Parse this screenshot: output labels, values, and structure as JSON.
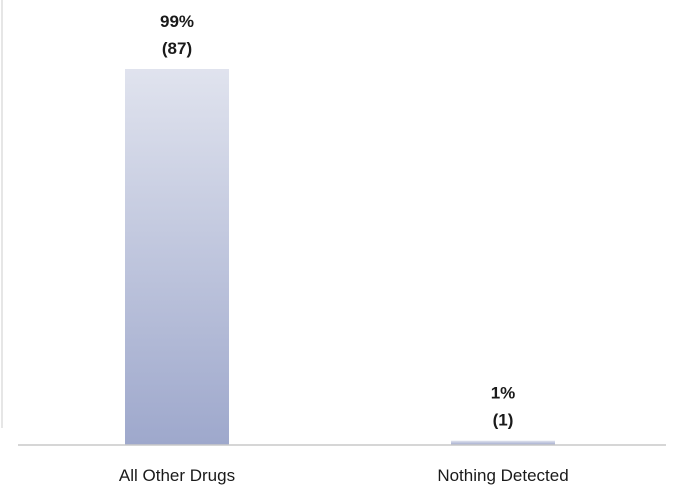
{
  "chart_data": {
    "type": "bar",
    "categories": [
      "All Other Drugs",
      "Nothing Detected"
    ],
    "values": [
      87,
      1
    ],
    "percent_labels": [
      "99%",
      "1%"
    ],
    "count_labels": [
      "(87)",
      "(1)"
    ],
    "title": "",
    "xlabel": "",
    "ylabel": "",
    "ylim": [
      0,
      87
    ],
    "grid": false,
    "legend": "none",
    "colors": {
      "bar_top": "#e0e3ee",
      "bar_bottom": "#9ea8cc",
      "axis": "#c8c8c8",
      "left_edge": "#e6e6e6"
    }
  }
}
